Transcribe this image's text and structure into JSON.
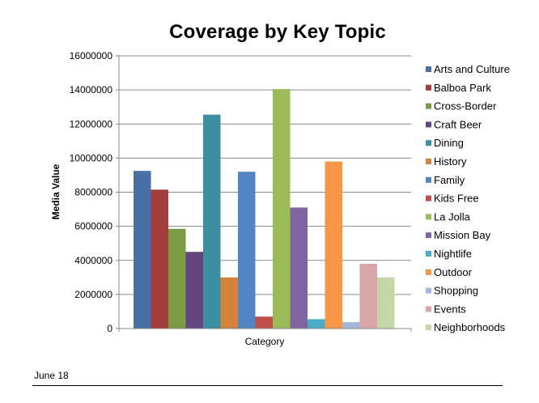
{
  "chart_data": {
    "type": "bar",
    "title": "Coverage by Key Topic",
    "xlabel": "Category",
    "ylabel": "Media Value",
    "ylim": [
      0,
      16000000
    ],
    "yticks": [
      "0",
      "2000000",
      "4000000",
      "6000000",
      "8000000",
      "10000000",
      "12000000",
      "14000000",
      "16000000"
    ],
    "grid": true,
    "legend_position": "right",
    "categories": [
      "Category"
    ],
    "series": [
      {
        "name": "Arts and Culture",
        "values": [
          9250000
        ],
        "color": "#4A6FA5"
      },
      {
        "name": "Balboa Park",
        "values": [
          8150000
        ],
        "color": "#A23F3C"
      },
      {
        "name": "Cross-Border",
        "values": [
          5850000
        ],
        "color": "#7D9A44"
      },
      {
        "name": "Craft Beer",
        "values": [
          4500000
        ],
        "color": "#63467F"
      },
      {
        "name": "Dining",
        "values": [
          12550000
        ],
        "color": "#3B8FA1"
      },
      {
        "name": "History",
        "values": [
          3000000
        ],
        "color": "#D3843A"
      },
      {
        "name": "Family",
        "values": [
          9200000
        ],
        "color": "#5384C4"
      },
      {
        "name": "Kids Free",
        "values": [
          700000
        ],
        "color": "#C14E4B"
      },
      {
        "name": "La Jolla",
        "values": [
          14050000
        ],
        "color": "#9BBB59"
      },
      {
        "name": "Mission Bay",
        "values": [
          7100000
        ],
        "color": "#8064A2"
      },
      {
        "name": "Nightlife",
        "values": [
          550000
        ],
        "color": "#4BACC6"
      },
      {
        "name": "Outdoor",
        "values": [
          9800000
        ],
        "color": "#F79646"
      },
      {
        "name": "Shopping",
        "values": [
          380000
        ],
        "color": "#A5B8D8"
      },
      {
        "name": "Events",
        "values": [
          3800000
        ],
        "color": "#D9A6A8"
      },
      {
        "name": "Neighborhoods",
        "values": [
          3000000
        ],
        "color": "#C4D7A8"
      }
    ]
  },
  "footer": {
    "date": "June 18"
  }
}
